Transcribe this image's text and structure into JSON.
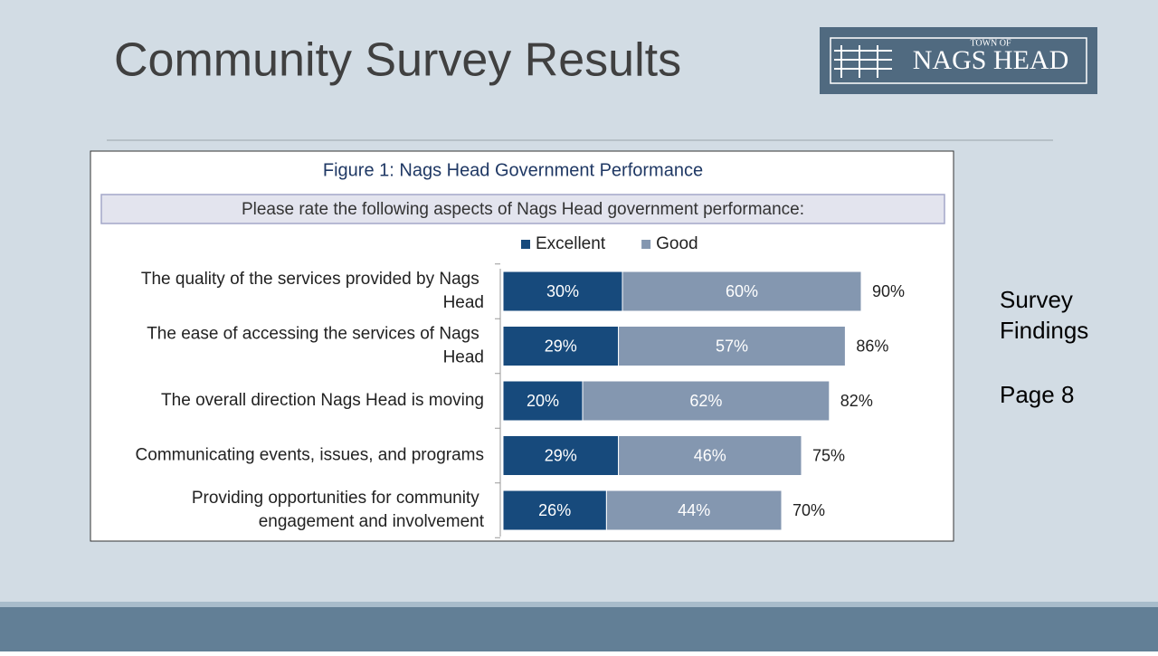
{
  "slide_title": "Community Survey Results",
  "logo": {
    "small_text": "TOWN OF",
    "name": "NAGS HEAD"
  },
  "side_notes": [
    "Survey",
    "Findings",
    "Page 8"
  ],
  "chart_data": {
    "type": "stacked-bar-horizontal",
    "title": "Figure 1: Nags Head Government Performance",
    "subtitle": "Please rate the following aspects of Nags Head government performance:",
    "categories": [
      "The quality of the services provided by Nags Head",
      "The ease of accessing the services of Nags Head",
      "The overall direction Nags Head is moving",
      "Communicating events, issues, and programs",
      "Providing opportunities for community engagement and involvement"
    ],
    "series": [
      {
        "name": "Excellent",
        "color": "#174a7c",
        "values": [
          30,
          29,
          20,
          29,
          26
        ],
        "value_labels": [
          "30%",
          "29%",
          "20%",
          "29%",
          "26%"
        ]
      },
      {
        "name": "Good",
        "color": "#8497b0",
        "values": [
          60,
          57,
          62,
          46,
          44
        ],
        "value_labels": [
          "60%",
          "57%",
          "62%",
          "46%",
          "44%"
        ]
      }
    ],
    "totals": [
      90,
      86,
      82,
      75,
      70
    ],
    "total_labels": [
      "90%",
      "86%",
      "82%",
      "75%",
      "70%"
    ],
    "xlim": [
      0,
      100
    ]
  }
}
